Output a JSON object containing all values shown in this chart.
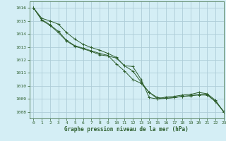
{
  "title": "Graphe pression niveau de la mer (hPa)",
  "bg_color": "#d4eef5",
  "grid_color": "#aecdd8",
  "line_color": "#2d5e2d",
  "xlim": [
    -0.5,
    23
  ],
  "ylim": [
    1007.5,
    1016.5
  ],
  "yticks": [
    1008,
    1009,
    1010,
    1011,
    1012,
    1013,
    1014,
    1015,
    1016
  ],
  "xticks": [
    0,
    1,
    2,
    3,
    4,
    5,
    6,
    7,
    8,
    9,
    10,
    11,
    12,
    13,
    14,
    15,
    16,
    17,
    18,
    19,
    20,
    21,
    22,
    23
  ],
  "series1": [
    1016.0,
    1015.2,
    1015.0,
    1014.75,
    1014.1,
    1013.6,
    1013.2,
    1012.95,
    1012.75,
    1012.5,
    1012.2,
    1011.55,
    1011.5,
    1010.5,
    1009.1,
    1009.0,
    1009.15,
    1009.2,
    1009.3,
    1009.35,
    1009.5,
    1009.4,
    1008.9,
    1008.0
  ],
  "series2": [
    1016.0,
    1015.1,
    1014.7,
    1014.2,
    1013.5,
    1013.1,
    1012.9,
    1012.7,
    1012.5,
    1012.35,
    1011.7,
    1011.15,
    1010.5,
    1010.2,
    1009.5,
    1009.1,
    1009.05,
    1009.1,
    1009.2,
    1009.25,
    1009.35,
    1009.35,
    1008.8,
    1008.0
  ],
  "series3": [
    1016.0,
    1015.05,
    1014.65,
    1014.1,
    1013.45,
    1013.05,
    1012.85,
    1012.65,
    1012.4,
    1012.3,
    1012.15,
    1011.55,
    1011.15,
    1010.3,
    1009.5,
    1009.0,
    1009.05,
    1009.1,
    1009.2,
    1009.25,
    1009.3,
    1009.3,
    1008.8,
    1008.05
  ]
}
